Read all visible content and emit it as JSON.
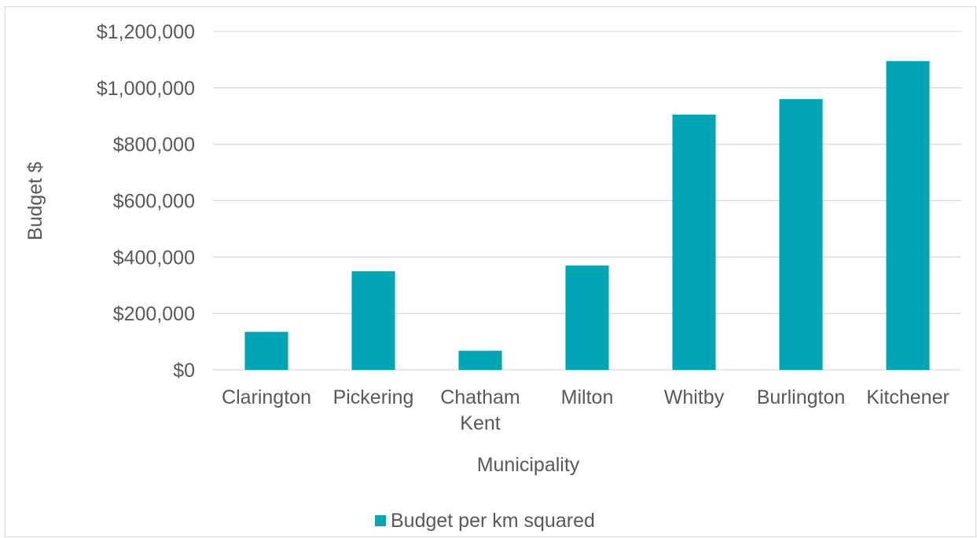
{
  "chart_data": {
    "type": "bar",
    "title": "",
    "xlabel": "Municipality",
    "ylabel": "Budget $",
    "ylim": [
      0,
      1200000
    ],
    "yticks": [
      0,
      200000,
      400000,
      600000,
      800000,
      1000000,
      1200000
    ],
    "ytick_labels": [
      "$0",
      "$200,000",
      "$400,000",
      "$600,000",
      "$800,000",
      "$1,000,000",
      "$1,200,000"
    ],
    "categories": [
      "Clarington",
      "Pickering",
      "Chatham Kent",
      "Milton",
      "Whitby",
      "Burlington",
      "Kitchener"
    ],
    "category_lines": [
      [
        "Clarington"
      ],
      [
        "Pickering"
      ],
      [
        "Chatham",
        "Kent"
      ],
      [
        "Milton"
      ],
      [
        "Whitby"
      ],
      [
        "Burlington"
      ],
      [
        "Kitchener"
      ]
    ],
    "series": [
      {
        "name": "Budget per km squared",
        "values": [
          135000,
          350000,
          68000,
          370000,
          905000,
          960000,
          1095000
        ]
      }
    ],
    "grid": true,
    "legend_position": "bottom",
    "colors": {
      "bar": "#00a6b4",
      "grid": "#d9d9d9",
      "text": "#595959"
    }
  }
}
